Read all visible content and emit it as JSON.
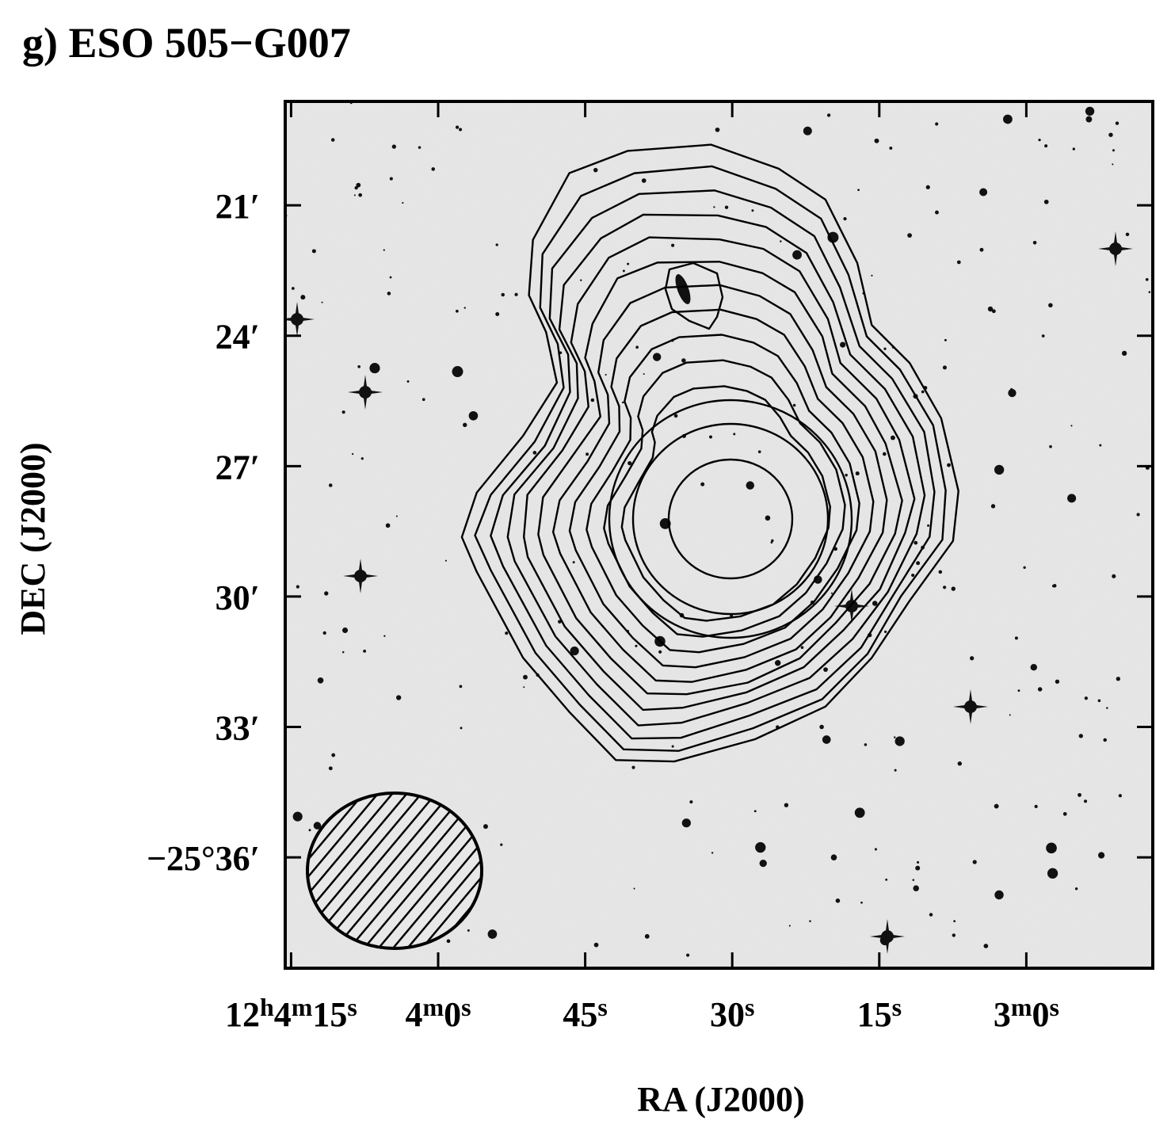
{
  "chart_data": {
    "type": "contour",
    "title": "g) ESO 505−G007",
    "xlabel": "RA (J2000)",
    "ylabel": "DEC (J2000)",
    "xlim": [
      255.6,
      167.1
    ],
    "ylim": [
      -1538.55,
      -1518.61
    ],
    "xticks": [
      {
        "value": 255,
        "label": "12h4m15s"
      },
      {
        "value": 240,
        "label": "4m0s"
      },
      {
        "value": 225,
        "label": "45s"
      },
      {
        "value": 210,
        "label": "30s"
      },
      {
        "value": 195,
        "label": "15s"
      },
      {
        "value": 180,
        "label": "3m0s"
      }
    ],
    "yticks": [
      {
        "value": -1521,
        "label": "21′"
      },
      {
        "value": -1524,
        "label": "24′"
      },
      {
        "value": -1527,
        "label": "27′"
      },
      {
        "value": -1530,
        "label": "30′"
      },
      {
        "value": -1533,
        "label": "33′"
      },
      {
        "value": -1536,
        "label": "−25°36′"
      }
    ]
  }
}
